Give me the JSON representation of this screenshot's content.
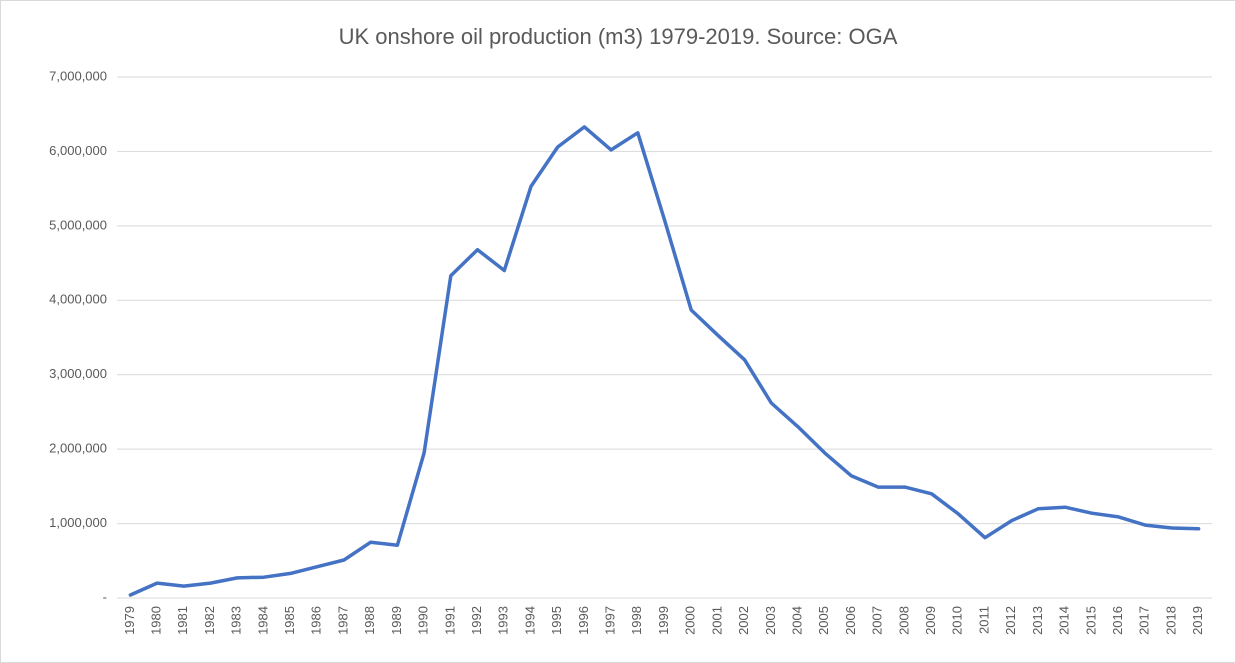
{
  "chart_data": {
    "type": "line",
    "title": "UK onshore oil production (m3) 1979-2019. Source: OGA",
    "categories": [
      "1979",
      "1980",
      "1981",
      "1982",
      "1983",
      "1984",
      "1985",
      "1986",
      "1987",
      "1988",
      "1989",
      "1990",
      "1991",
      "1992",
      "1993",
      "1994",
      "1995",
      "1996",
      "1997",
      "1998",
      "1999",
      "2000",
      "2001",
      "2002",
      "2003",
      "2004",
      "2005",
      "2006",
      "2007",
      "2008",
      "2009",
      "2010",
      "2011",
      "2012",
      "2013",
      "2014",
      "2015",
      "2016",
      "2017",
      "2018",
      "2019"
    ],
    "values": [
      40000,
      200000,
      160000,
      200000,
      270000,
      280000,
      330000,
      420000,
      510000,
      750000,
      710000,
      1950000,
      4330000,
      4680000,
      4400000,
      5530000,
      6060000,
      6330000,
      6020000,
      6250000,
      5080000,
      3870000,
      3530000,
      3200000,
      2620000,
      2300000,
      1950000,
      1640000,
      1490000,
      1490000,
      1400000,
      1130000,
      810000,
      1040000,
      1200000,
      1220000,
      1140000,
      1090000,
      980000,
      940000,
      930000
    ],
    "color": "#4472c4",
    "ylim": [
      0,
      7000000
    ],
    "yticks": [
      {
        "value": 0,
        "label": "-"
      },
      {
        "value": 1000000,
        "label": "1,000,000"
      },
      {
        "value": 2000000,
        "label": "2,000,000"
      },
      {
        "value": 3000000,
        "label": "3,000,000"
      },
      {
        "value": 4000000,
        "label": "4,000,000"
      },
      {
        "value": 5000000,
        "label": "5,000,000"
      },
      {
        "value": 6000000,
        "label": "6,000,000"
      },
      {
        "value": 7000000,
        "label": "7,000,000"
      }
    ],
    "grid": true
  }
}
